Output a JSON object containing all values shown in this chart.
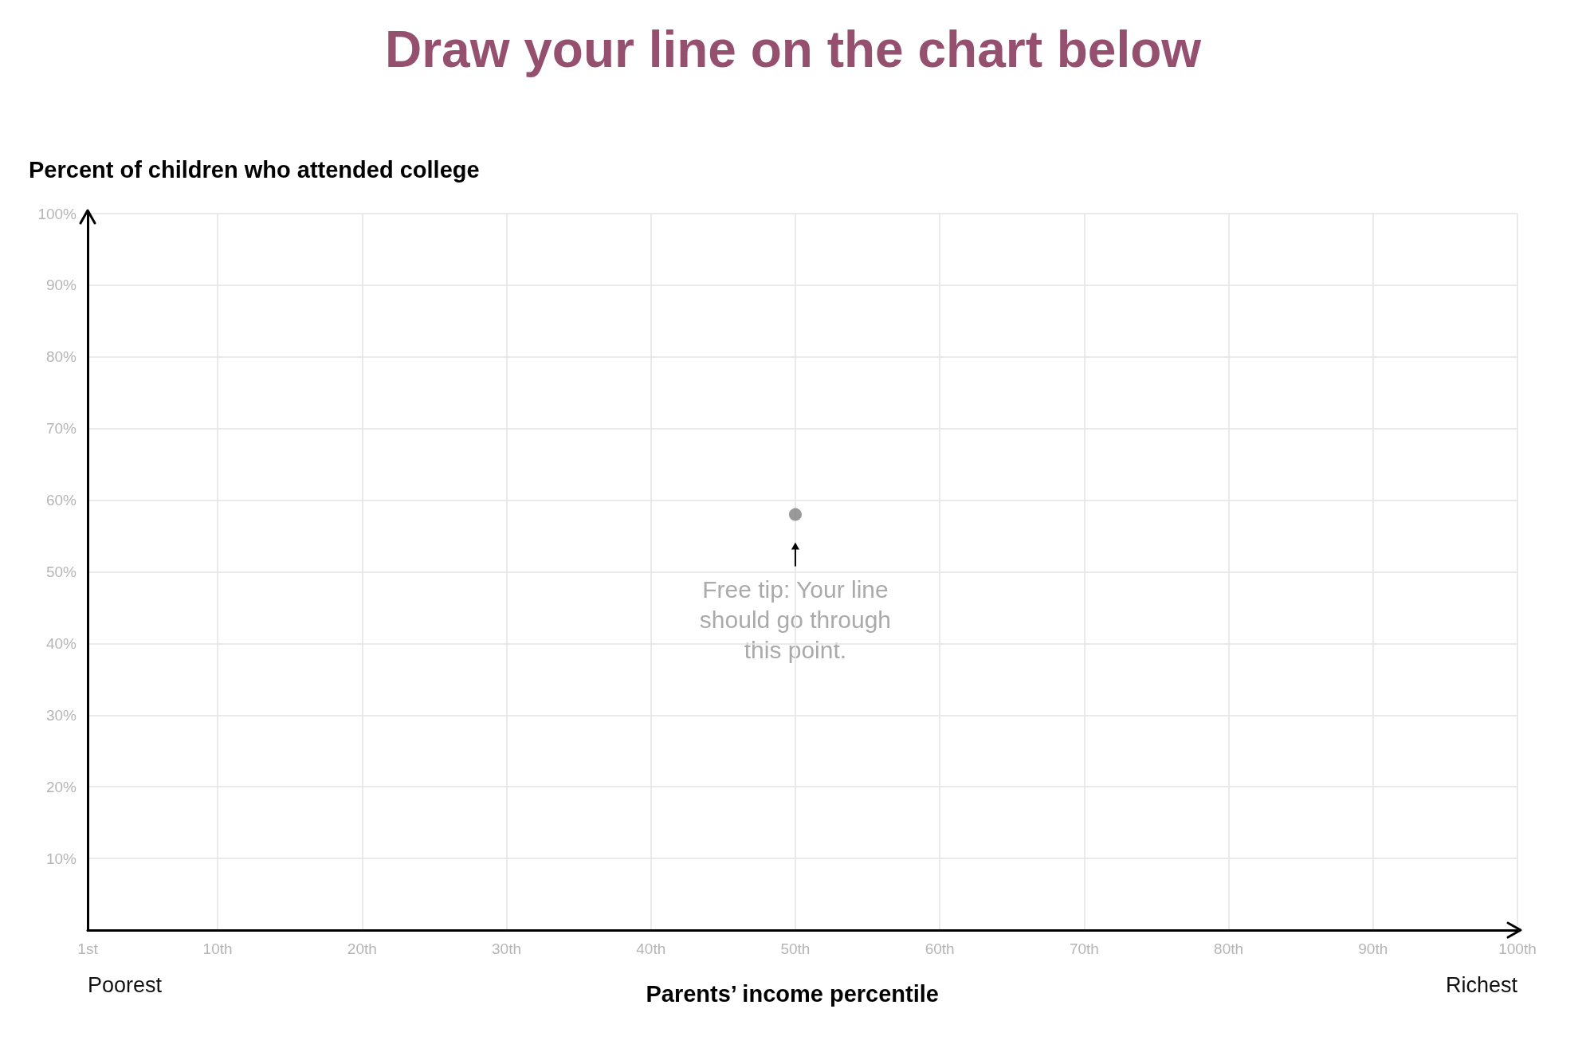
{
  "chart_data": {
    "type": "scatter",
    "title": "Draw your line on the chart below",
    "ylabel": "Percent of children who attended college",
    "xlabel": "Parents’ income percentile",
    "x": [
      50
    ],
    "values": [
      58
    ],
    "color": "#808080",
    "marker": "circle",
    "grid": true,
    "xlim": [
      1,
      100
    ],
    "xticks": [
      {
        "value": 1,
        "label": "1st"
      },
      {
        "value": 10,
        "label": "10th"
      },
      {
        "value": 20,
        "label": "20th"
      },
      {
        "value": 30,
        "label": "30th"
      },
      {
        "value": 40,
        "label": "40th"
      },
      {
        "value": 50,
        "label": "50th"
      },
      {
        "value": 60,
        "label": "60th"
      },
      {
        "value": 70,
        "label": "70th"
      },
      {
        "value": 80,
        "label": "80th"
      },
      {
        "value": 90,
        "label": "90th"
      },
      {
        "value": 100,
        "label": "100th"
      }
    ],
    "ylim": [
      0,
      100
    ],
    "yticks": [
      {
        "value": 10,
        "label": "10%"
      },
      {
        "value": 20,
        "label": "20%"
      },
      {
        "value": 30,
        "label": "30%"
      },
      {
        "value": 40,
        "label": "40%"
      },
      {
        "value": 50,
        "label": "50%"
      },
      {
        "value": 60,
        "label": "60%"
      },
      {
        "value": 70,
        "label": "70%"
      },
      {
        "value": 80,
        "label": "80%"
      },
      {
        "value": 90,
        "label": "90%"
      },
      {
        "value": 100,
        "label": "100%"
      }
    ],
    "annotations": [
      {
        "text": "Free tip: Your line\nshould go through\nthis point.",
        "x": 50,
        "y": 58
      },
      "Poorest",
      "Richest"
    ]
  }
}
